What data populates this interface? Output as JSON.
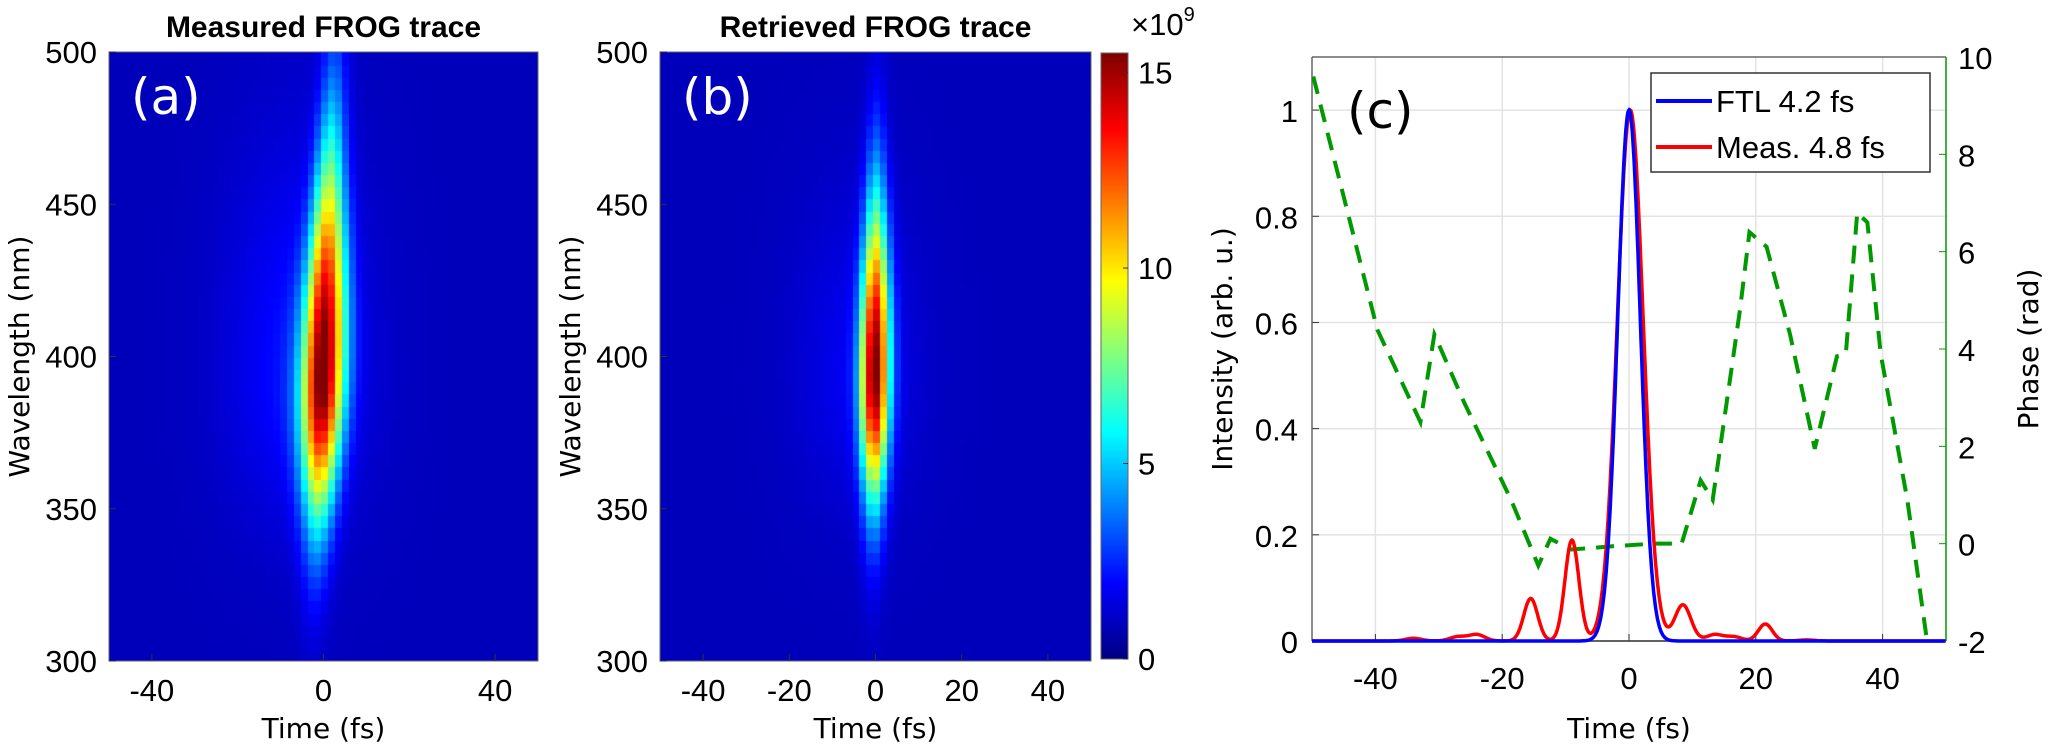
{
  "colors": {
    "intensity_ftl": "#0000ff",
    "intensity_meas": "#ff0000",
    "phase": "#009900",
    "heatmap_bg": "#00008f"
  },
  "chart_data": [
    {
      "type": "heatmap",
      "panel_label": "(a)",
      "title": "Measured FROG trace",
      "xlabel": "Time (fs)",
      "ylabel": "Wavelength (nm)",
      "xlim": [
        -50,
        50
      ],
      "ylim": [
        300,
        500
      ],
      "xticks": [
        "-40",
        "0",
        "40"
      ],
      "xtick_values": [
        -40,
        0,
        40
      ],
      "yticks": [
        "300",
        "350",
        "400",
        "450",
        "500"
      ],
      "ytick_values": [
        300,
        350,
        400,
        450,
        500
      ],
      "colormap": "jet",
      "clim": [
        0,
        15.5
      ],
      "model": {
        "peak": 15.5,
        "center_wavelength": 395,
        "fwhm_up_nm": 125,
        "fwhm_down_nm": 80,
        "time_fwhm_at_center": 8,
        "time_fwhm_edge": 4.5,
        "tilt_fs_per_100nm": 2.5,
        "wing_level": 0.09,
        "wing_center": -6,
        "wing_width": 16,
        "time_step": 1.6,
        "wavelength_step": 4
      }
    },
    {
      "type": "heatmap",
      "panel_label": "(b)",
      "title": "Retrieved FROG trace",
      "xlabel": "Time (fs)",
      "ylabel": "Wavelength (nm)",
      "xlim": [
        -50,
        50
      ],
      "ylim": [
        300,
        500
      ],
      "xticks": [
        "-40",
        "-20",
        "0",
        "20",
        "40"
      ],
      "xtick_values": [
        -40,
        -20,
        0,
        20,
        40
      ],
      "yticks": [
        "300",
        "350",
        "400",
        "450",
        "500"
      ],
      "ytick_values": [
        300,
        350,
        400,
        450,
        500
      ],
      "colormap": "jet",
      "clim": [
        0,
        15.5
      ],
      "colorbar": {
        "ticks": [
          "0",
          "5",
          "10",
          "15"
        ],
        "tick_values": [
          0,
          5,
          10,
          15
        ],
        "exponent_label": "×10",
        "exponent": "9"
      },
      "model": {
        "peak": 15.5,
        "center_wavelength": 395,
        "fwhm_up_nm": 95,
        "fwhm_down_nm": 70,
        "time_fwhm_at_center": 5.5,
        "time_fwhm_edge": 3.5,
        "tilt_fs_per_100nm": 0.5,
        "wing_level": 0.06,
        "wing_center": -4,
        "wing_width": 14,
        "time_step": 1.6,
        "wavelength_step": 4
      }
    },
    {
      "type": "line",
      "panel_label": "(c)",
      "xlabel": "Time (fs)",
      "ylabel": "Intensity (arb. u.)",
      "y2label": "Phase (rad)",
      "xlim": [
        -50,
        50
      ],
      "ylim": [
        0,
        1.1
      ],
      "y2lim": [
        -2,
        10
      ],
      "grid": true,
      "xticks": [
        "-40",
        "-20",
        "0",
        "20",
        "40"
      ],
      "xtick_values": [
        -40,
        -20,
        0,
        20,
        40
      ],
      "yticks": [
        "0",
        "0.2",
        "0.4",
        "0.6",
        "0.8",
        "1"
      ],
      "ytick_values": [
        0,
        0.2,
        0.4,
        0.6,
        0.8,
        1
      ],
      "y2ticks": [
        "-2",
        "0",
        "2",
        "4",
        "6",
        "8",
        "10"
      ],
      "y2tick_values": [
        -2,
        0,
        2,
        4,
        6,
        8,
        10
      ],
      "legend": {
        "position": "top-right",
        "entries": [
          "FTL 4.2 fs",
          "Meas. 4.8 fs"
        ]
      },
      "series": [
        {
          "name": "FTL 4.2 fs",
          "axis": "left",
          "style": "solid",
          "fwhm": 4.2,
          "center": 0,
          "peaks": []
        },
        {
          "name": "Meas. 4.8 fs",
          "axis": "left",
          "style": "solid",
          "fwhm": 4.8,
          "center": 0.2,
          "peaks": [
            [
              -34,
              0.005,
              3
            ],
            [
              -27,
              0.008,
              3
            ],
            [
              -24,
              0.012,
              3
            ],
            [
              -15.5,
              0.08,
              2.6
            ],
            [
              -9,
              0.19,
              2.6
            ],
            [
              8.5,
              0.068,
              3
            ],
            [
              13.5,
              0.012,
              3
            ],
            [
              16.5,
              0.008,
              3
            ],
            [
              21.5,
              0.032,
              2.6
            ],
            [
              28,
              0.002,
              3
            ]
          ]
        },
        {
          "name": "Phase",
          "axis": "right",
          "style": "dashed",
          "x": [
            -49.8,
            -39.7,
            -32.9,
            -30.7,
            -26,
            -18.6,
            -14.3,
            -12.4,
            -9.1,
            -2.2,
            3.8,
            8.3,
            11.3,
            13.2,
            17.5,
            19,
            21.7,
            25.4,
            29.3,
            32.8,
            34.2,
            36,
            37.6,
            39.7,
            43.9,
            46.9
          ],
          "y": [
            9.6,
            4.4,
            2.5,
            4.3,
            2.9,
            0.9,
            -0.45,
            0.1,
            -0.12,
            -0.05,
            0.0,
            0.0,
            1.3,
            0.9,
            4.8,
            6.4,
            6.1,
            4.3,
            1.95,
            3.85,
            3.9,
            6.8,
            6.6,
            3.9,
            0.9,
            -1.9
          ]
        }
      ]
    }
  ]
}
